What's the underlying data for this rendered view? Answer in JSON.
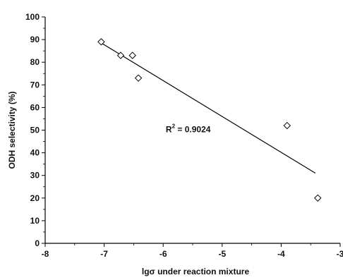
{
  "chart_data": {
    "type": "scatter",
    "title": "",
    "xlabel": "lgσ under reaction mixture",
    "ylabel": "ODH selectivity (%)",
    "xlim": [
      -8,
      -3
    ],
    "ylim": [
      0,
      100
    ],
    "x_ticks": [
      -8,
      -7,
      -6,
      -5,
      -4,
      -3
    ],
    "x_tick_labels": [
      "-8",
      "-7",
      "-6",
      "-5",
      "-4",
      "-3"
    ],
    "y_ticks": [
      0,
      10,
      20,
      30,
      40,
      50,
      60,
      70,
      80,
      90,
      100
    ],
    "y_tick_labels": [
      "0",
      "10",
      "20",
      "30",
      "40",
      "50",
      "60",
      "70",
      "80",
      "90",
      "100"
    ],
    "grid": false,
    "series": [
      {
        "marker": "diamond-open",
        "x": [
          -7.05,
          -6.72,
          -6.52,
          -6.42,
          -3.9,
          -3.38
        ],
        "y": [
          89,
          83,
          83,
          73,
          52,
          20
        ]
      }
    ],
    "trendline": {
      "x": [
        -7.05,
        -3.42
      ],
      "y": [
        88.5,
        31
      ]
    },
    "annotation": {
      "text": "R",
      "superscript": "2",
      "suffix": " = 0.9024",
      "x": -5.8,
      "y": 50
    }
  }
}
